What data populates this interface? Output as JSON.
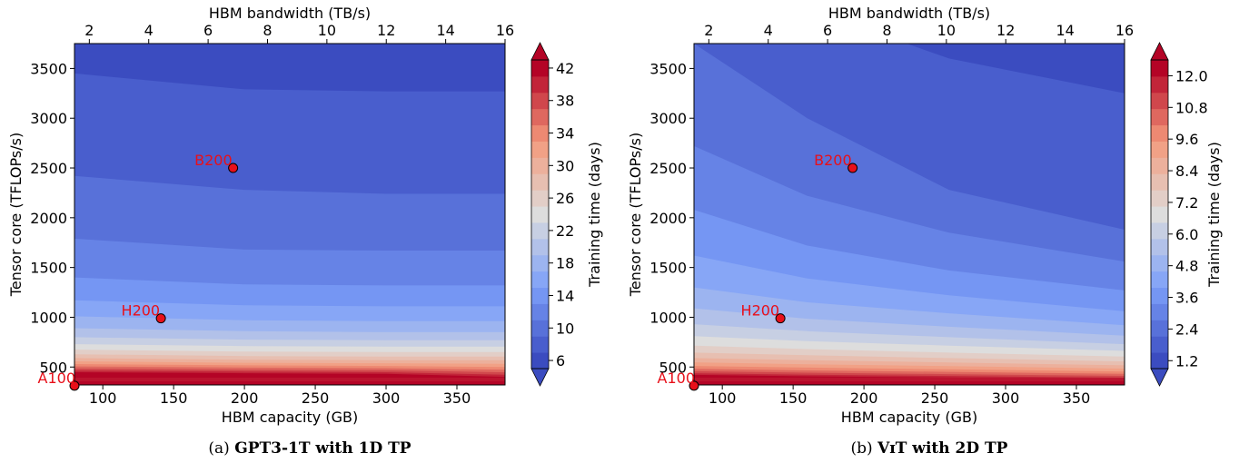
{
  "charts": [
    {
      "caption_letter": "(a)",
      "caption_title": "GPT3-1T with 1D TP",
      "colorbar_label": "Training time (days)",
      "colorbar_ticks": [
        "6",
        "10",
        "14",
        "18",
        "22",
        "26",
        "30",
        "34",
        "38",
        "42"
      ],
      "colorbar_levels": 19,
      "colorbar_range": [
        5,
        43
      ],
      "x_bottom_label": "HBM capacity (GB)",
      "x_top_label": "HBM bandwidth (TB/s)",
      "y_label": "Tensor core (TFLOPs/s)"
    },
    {
      "caption_letter": "(b)",
      "caption_title": "VɪT with 2D TP",
      "colorbar_label": "Training time (days)",
      "colorbar_ticks": [
        "1.2",
        "2.4",
        "3.6",
        "4.8",
        "6.0",
        "7.2",
        "8.4",
        "9.6",
        "10.8",
        "12.0"
      ],
      "colorbar_levels": 19,
      "colorbar_range": [
        0.9,
        12.6
      ],
      "x_bottom_label": "HBM capacity (GB)",
      "x_top_label": "HBM bandwidth (TB/s)",
      "y_label": "Tensor core (TFLOPs/s)"
    }
  ],
  "chart_data": [
    {
      "type": "heatmap",
      "title": "GPT3-1T with 1D TP",
      "xlabel": "HBM capacity (GB)",
      "x2label": "HBM bandwidth (TB/s)",
      "ylabel": "Tensor core (TFLOPs/s)",
      "colorbar_label": "Training time (days)",
      "colormap": "coolwarm",
      "x_ticks": [
        "100",
        "150",
        "200",
        "250",
        "300",
        "350"
      ],
      "x2_ticks": [
        "2",
        "4",
        "6",
        "8",
        "10",
        "12",
        "14",
        "16"
      ],
      "y_ticks": [
        "500",
        "1000",
        "1500",
        "2000",
        "2500",
        "3000",
        "3500"
      ],
      "xlim": [
        80,
        384
      ],
      "x2lim": [
        1.5,
        16
      ],
      "ylim": [
        320,
        3750
      ],
      "contour_boundaries_y": [
        [
          3450,
          3290,
          3270,
          3270
        ],
        [
          2420,
          2280,
          2240,
          2240
        ],
        [
          1790,
          1680,
          1670,
          1670
        ],
        [
          1400,
          1330,
          1320,
          1320
        ],
        [
          1170,
          1120,
          1110,
          1110
        ],
        [
          1010,
          970,
          960,
          960
        ],
        [
          890,
          860,
          850,
          850
        ],
        [
          800,
          775,
          770,
          770
        ],
        [
          730,
          710,
          705,
          705
        ],
        [
          675,
          655,
          650,
          650
        ],
        [
          628,
          610,
          605,
          605
        ],
        [
          590,
          574,
          569,
          569
        ],
        [
          557,
          543,
          538,
          532
        ],
        [
          530,
          517,
          511,
          500
        ],
        [
          506,
          494,
          488,
          472
        ],
        [
          484,
          473,
          467,
          447
        ],
        [
          465,
          455,
          448,
          423
        ],
        [
          448,
          438,
          431,
          401
        ]
      ],
      "contour_boundary_x": [
        80,
        200,
        300,
        384
      ],
      "points": [
        {
          "label": "A100",
          "x": 80,
          "y": 312
        },
        {
          "label": "H200",
          "x": 141,
          "y": 989
        },
        {
          "label": "B200",
          "x": 192,
          "y": 2500
        }
      ]
    },
    {
      "type": "heatmap",
      "title": "VɪT with 2D TP",
      "xlabel": "HBM capacity (GB)",
      "x2label": "HBM bandwidth (TB/s)",
      "ylabel": "Tensor core (TFLOPs/s)",
      "colorbar_label": "Training time (days)",
      "colormap": "coolwarm",
      "x_ticks": [
        "100",
        "150",
        "200",
        "250",
        "300",
        "350"
      ],
      "x2_ticks": [
        "2",
        "4",
        "6",
        "8",
        "10",
        "12",
        "14",
        "16"
      ],
      "y_ticks": [
        "500",
        "1000",
        "1500",
        "2000",
        "2500",
        "3000",
        "3500"
      ],
      "xlim": [
        80,
        384
      ],
      "x2lim": [
        1.5,
        16
      ],
      "ylim": [
        320,
        3750
      ],
      "contour_boundaries_y": [
        [
          4200,
          4100,
          3600,
          3250
        ],
        [
          3750,
          3000,
          2280,
          1880
        ],
        [
          2720,
          2220,
          1850,
          1560
        ],
        [
          2080,
          1720,
          1470,
          1270
        ],
        [
          1620,
          1390,
          1220,
          1060
        ],
        [
          1300,
          1150,
          1040,
          920
        ],
        [
          1090,
          985,
          905,
          815
        ],
        [
          930,
          860,
          800,
          730
        ],
        [
          810,
          760,
          715,
          662
        ],
        [
          715,
          680,
          645,
          605
        ],
        [
          645,
          618,
          590,
          556
        ],
        [
          590,
          568,
          546,
          517
        ],
        [
          547,
          528,
          509,
          484
        ],
        [
          511,
          494,
          477,
          455
        ],
        [
          482,
          466,
          451,
          431
        ],
        [
          458,
          443,
          429,
          411
        ],
        [
          438,
          423,
          410,
          393
        ],
        [
          421,
          407,
          394,
          378
        ]
      ],
      "contour_boundary_x": [
        80,
        160,
        260,
        384
      ],
      "points": [
        {
          "label": "A100",
          "x": 80,
          "y": 312
        },
        {
          "label": "H200",
          "x": 141,
          "y": 989
        },
        {
          "label": "B200",
          "x": 192,
          "y": 2500
        }
      ]
    }
  ]
}
